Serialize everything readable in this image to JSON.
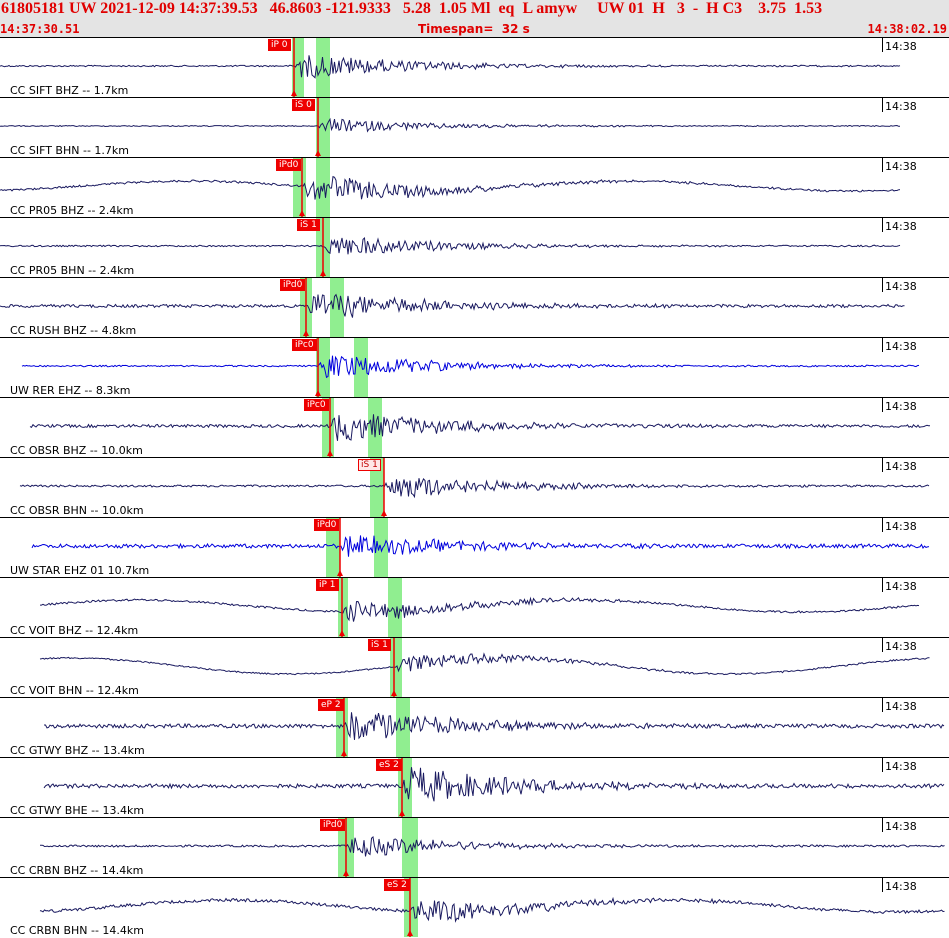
{
  "header": {
    "title": "61805181 UW 2021-12-09 14:37:39.53   46.8603 -121.9333   5.28  1.05 Ml  eq  L amyw     UW 01  H   3  -  H C3    3.75  1.53",
    "start_time": "14:37:30.51",
    "timespan": "Timespan=  32 s",
    "end_time": "14:38:02.19"
  },
  "colors": {
    "pick_red": "#ee0000",
    "window_green": "#90ee90",
    "trace_navy": "#1a1a60",
    "trace_blue": "#0000dd",
    "header_bg": "#e4e4e4"
  },
  "traces": [
    {
      "label": "CC SIFT BHZ -- 1.7km",
      "time": "14:38",
      "pick": "iP 0",
      "pick_style": "solid",
      "color": "navy"
    },
    {
      "label": "CC SIFT BHN -- 1.7km",
      "time": "14:38",
      "pick": "iS 0",
      "pick_style": "solid",
      "color": "navy"
    },
    {
      "label": "CC PR05 BHZ -- 2.4km",
      "time": "14:38",
      "pick": "iPd0",
      "pick_style": "solid",
      "color": "navy"
    },
    {
      "label": "CC PR05 BHN -- 2.4km",
      "time": "14:38",
      "pick": "iS 1",
      "pick_style": "solid",
      "color": "navy"
    },
    {
      "label": "CC RUSH BHZ -- 4.8km",
      "time": "14:38",
      "pick": "iPd0",
      "pick_style": "solid",
      "color": "navy"
    },
    {
      "label": "UW RER EHZ -- 8.3km",
      "time": "14:38",
      "pick": "iPc0",
      "pick_style": "solid",
      "color": "blue"
    },
    {
      "label": "CC OBSR BHZ -- 10.0km",
      "time": "14:38",
      "pick": "iPc0",
      "pick_style": "solid",
      "color": "navy"
    },
    {
      "label": "CC OBSR BHN -- 10.0km",
      "time": "14:38",
      "pick": "iS 1",
      "pick_style": "light",
      "color": "navy"
    },
    {
      "label": "UW STAR EHZ 01 10.7km",
      "time": "14:38",
      "pick": "iPd0",
      "pick_style": "solid",
      "color": "blue"
    },
    {
      "label": "CC VOIT BHZ -- 12.4km",
      "time": "14:38",
      "pick": "iP 1",
      "pick_style": "solid",
      "color": "navy"
    },
    {
      "label": "CC VOIT BHN -- 12.4km",
      "time": "14:38",
      "pick": "iS 1",
      "pick_style": "solid",
      "color": "navy"
    },
    {
      "label": "CC GTWY BHZ -- 13.4km",
      "time": "14:38",
      "pick": "eP 2",
      "pick_style": "solid",
      "color": "navy"
    },
    {
      "label": "CC GTWY BHE -- 13.4km",
      "time": "14:38",
      "pick": "eS 2",
      "pick_style": "solid",
      "color": "navy"
    },
    {
      "label": "CC CRBN BHZ -- 14.4km",
      "time": "14:38",
      "pick": "iPd0",
      "pick_style": "solid",
      "color": "navy"
    },
    {
      "label": "CC CRBN BHN -- 14.4km",
      "time": "14:38",
      "pick": "eS 2",
      "pick_style": "solid",
      "color": "navy"
    }
  ]
}
